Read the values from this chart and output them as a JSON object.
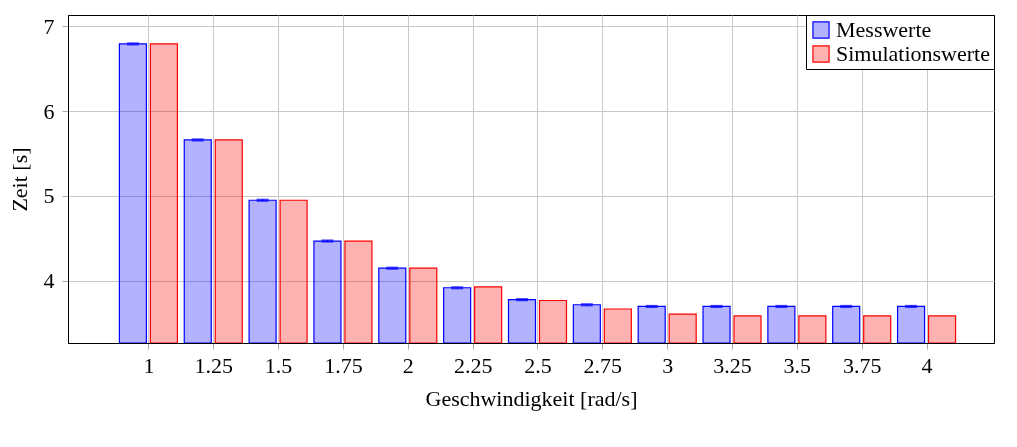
{
  "chart_data": {
    "type": "bar",
    "xlabel": "Geschwindigkeit    [rad/s]",
    "ylabel": "Zeit    [s]",
    "x": [
      1,
      1.25,
      1.5,
      1.75,
      2,
      2.25,
      2.5,
      2.75,
      3,
      3.25,
      3.5,
      3.75,
      4
    ],
    "series": [
      {
        "name": "Messwerte",
        "color": "#0000ff",
        "values": [
          6.79,
          5.66,
          4.95,
          4.47,
          4.15,
          3.92,
          3.78,
          3.72,
          3.7,
          3.7,
          3.7,
          3.7,
          3.7
        ],
        "errors": [
          0.01,
          0.01,
          0.01,
          0.01,
          0.01,
          0.01,
          0.01,
          0.01,
          0.01,
          0.01,
          0.01,
          0.01,
          0.01
        ]
      },
      {
        "name": "Simulationswerte",
        "color": "#ff0000",
        "values": [
          6.79,
          5.66,
          4.95,
          4.47,
          4.15,
          3.93,
          3.77,
          3.67,
          3.61,
          3.59,
          3.59,
          3.59,
          3.59
        ]
      }
    ],
    "xlim": [
      0.69,
      4.26
    ],
    "xticks": [
      1,
      1.25,
      1.5,
      1.75,
      2,
      2.25,
      2.5,
      2.75,
      3,
      3.25,
      3.5,
      3.75,
      4
    ],
    "ylim": [
      3.27,
      7.13
    ],
    "yticks": [
      4,
      5,
      6,
      7
    ],
    "grid": true,
    "legend": "top right"
  }
}
